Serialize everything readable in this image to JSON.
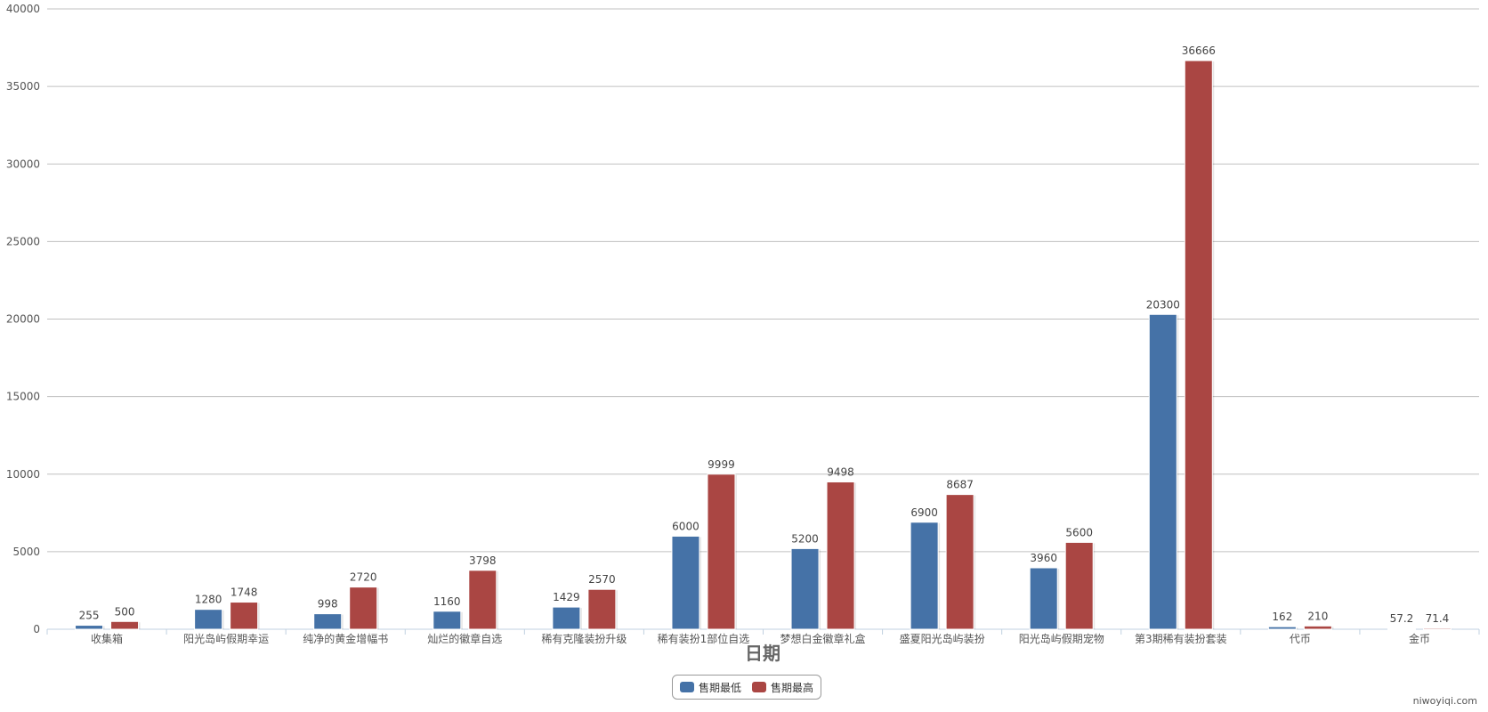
{
  "chart_data": {
    "type": "bar",
    "xlabel": "日期",
    "ylabel": "",
    "ylim": [
      0,
      40000
    ],
    "yticks": [
      0,
      5000,
      10000,
      15000,
      20000,
      25000,
      30000,
      35000,
      40000
    ],
    "grid": true,
    "legend_position": "bottom-center",
    "categories": [
      "收集箱",
      "阳光岛屿假期幸运",
      "纯净的黄金增幅书",
      "灿烂的徽章自选",
      "稀有克隆装扮升级",
      "稀有装扮1部位自选",
      "梦想白金徽章礼盒",
      "盛夏阳光岛屿装扮",
      "阳光岛屿假期宠物",
      "第3期稀有装扮套装",
      "代币",
      "金币"
    ],
    "series": [
      {
        "name": "售期最低",
        "color": "#4572a7",
        "values": [
          255,
          1280,
          998,
          1160,
          1429,
          6000,
          5200,
          6900,
          3960,
          20300,
          162,
          57.2
        ]
      },
      {
        "name": "售期最高",
        "color": "#aa4643",
        "values": [
          500,
          1748,
          2720,
          3798,
          2570,
          9999,
          9498,
          8687,
          5600,
          36666,
          210,
          71.4
        ]
      }
    ]
  },
  "watermark": "niwoyiqi.com"
}
